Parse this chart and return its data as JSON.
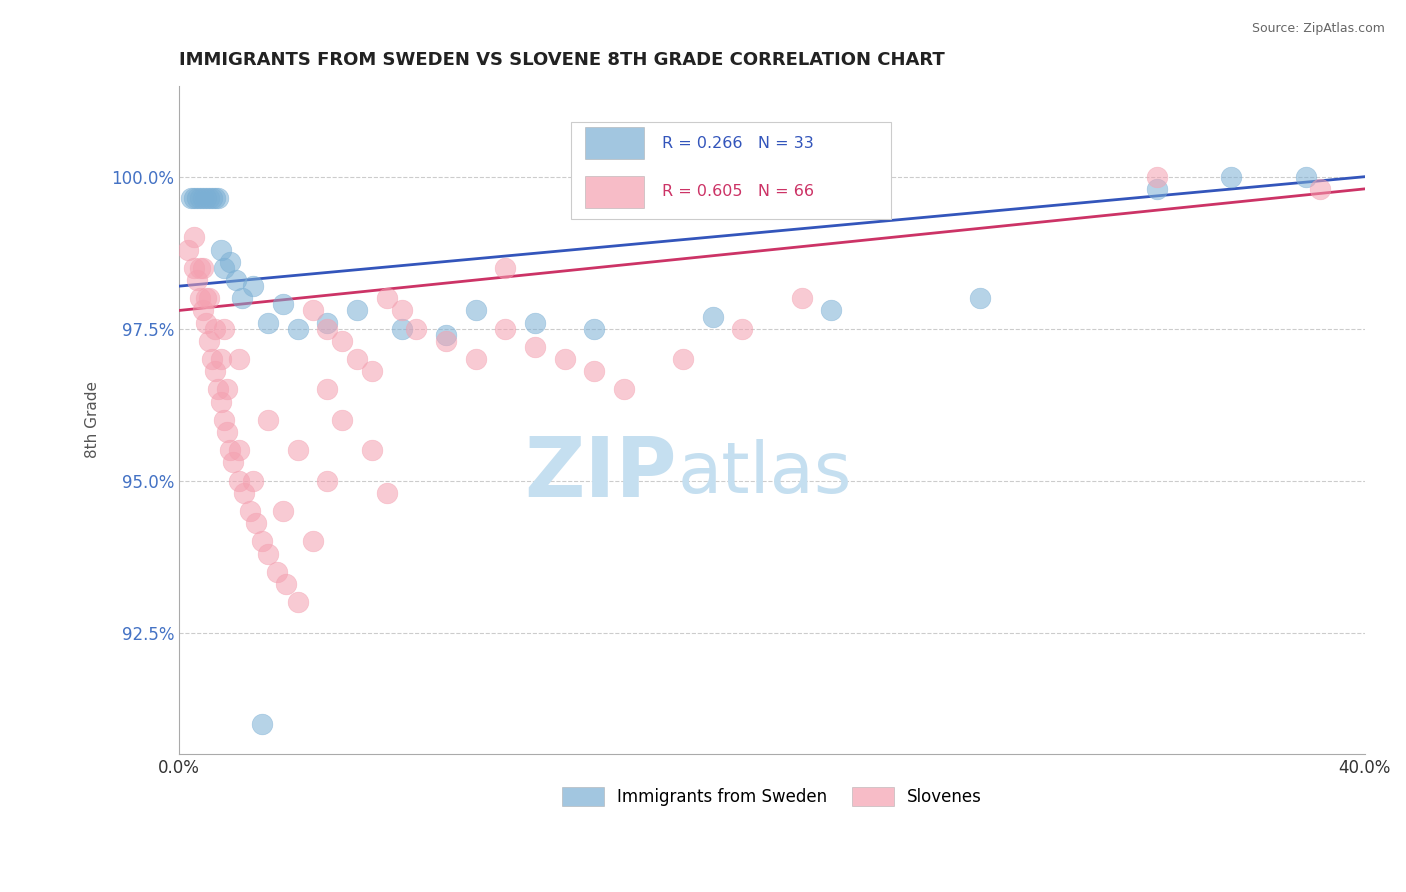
{
  "title": "IMMIGRANTS FROM SWEDEN VS SLOVENE 8TH GRADE CORRELATION CHART",
  "source": "Source: ZipAtlas.com",
  "xlim": [
    0.0,
    40.0
  ],
  "ylim": [
    90.5,
    101.5
  ],
  "ytick_vals": [
    92.5,
    95.0,
    97.5,
    100.0
  ],
  "xtick_vals": [
    0.0,
    40.0
  ],
  "ylabel": "8th Grade",
  "blue_R": 0.266,
  "blue_N": 33,
  "pink_R": 0.605,
  "pink_N": 66,
  "blue_color": "#7bafd4",
  "pink_color": "#f4a0b0",
  "blue_edge_color": "#5590bb",
  "pink_edge_color": "#e070a0",
  "blue_label": "Immigrants from Sweden",
  "pink_label": "Slovenes",
  "blue_line_color": "#3355bb",
  "pink_line_color": "#cc3366",
  "watermark_zip": "ZIP",
  "watermark_atlas": "atlas",
  "watermark_color_zip": "#c5dff0",
  "watermark_color_atlas": "#c5dff0",
  "grid_color": "#cccccc",
  "title_color": "#222222",
  "axis_color": "#aaaaaa",
  "blue_x": [
    0.4,
    0.5,
    0.6,
    0.7,
    0.8,
    0.9,
    1.0,
    1.1,
    1.2,
    1.3,
    1.4,
    1.5,
    1.7,
    1.9,
    2.1,
    2.5,
    3.0,
    3.5,
    4.0,
    5.0,
    6.0,
    7.5,
    9.0,
    10.0,
    12.0,
    14.0,
    18.0,
    22.0,
    27.0,
    33.0,
    35.5,
    38.0,
    2.8
  ],
  "blue_y": [
    99.65,
    99.65,
    99.65,
    99.65,
    99.65,
    99.65,
    99.65,
    99.65,
    99.65,
    99.65,
    98.8,
    98.5,
    98.6,
    98.3,
    98.0,
    98.2,
    97.6,
    97.9,
    97.5,
    97.6,
    97.8,
    97.5,
    97.4,
    97.8,
    97.6,
    97.5,
    97.7,
    97.8,
    98.0,
    99.8,
    100.0,
    100.0,
    91.0
  ],
  "pink_x": [
    0.3,
    0.5,
    0.6,
    0.7,
    0.8,
    0.9,
    1.0,
    1.1,
    1.2,
    1.3,
    1.4,
    1.5,
    1.6,
    1.7,
    1.8,
    2.0,
    2.2,
    2.4,
    2.6,
    2.8,
    3.0,
    3.3,
    3.6,
    4.0,
    4.5,
    5.0,
    5.5,
    6.0,
    6.5,
    7.0,
    7.5,
    8.0,
    9.0,
    10.0,
    11.0,
    12.0,
    13.0,
    14.0,
    15.0,
    17.0,
    19.0,
    21.0,
    0.8,
    1.0,
    1.2,
    1.4,
    1.6,
    2.0,
    2.5,
    3.5,
    4.5,
    3.0,
    4.0,
    5.0,
    7.0,
    5.0,
    5.5,
    6.5,
    0.5,
    0.7,
    0.9,
    1.5,
    2.0,
    11.0,
    33.0,
    38.5
  ],
  "pink_y": [
    98.8,
    98.5,
    98.3,
    98.0,
    97.8,
    97.6,
    97.3,
    97.0,
    96.8,
    96.5,
    96.3,
    96.0,
    95.8,
    95.5,
    95.3,
    95.0,
    94.8,
    94.5,
    94.3,
    94.0,
    93.8,
    93.5,
    93.3,
    93.0,
    97.8,
    97.5,
    97.3,
    97.0,
    96.8,
    98.0,
    97.8,
    97.5,
    97.3,
    97.0,
    97.5,
    97.2,
    97.0,
    96.8,
    96.5,
    97.0,
    97.5,
    98.0,
    98.5,
    98.0,
    97.5,
    97.0,
    96.5,
    95.5,
    95.0,
    94.5,
    94.0,
    96.0,
    95.5,
    95.0,
    94.8,
    96.5,
    96.0,
    95.5,
    99.0,
    98.5,
    98.0,
    97.5,
    97.0,
    98.5,
    100.0,
    99.8
  ]
}
